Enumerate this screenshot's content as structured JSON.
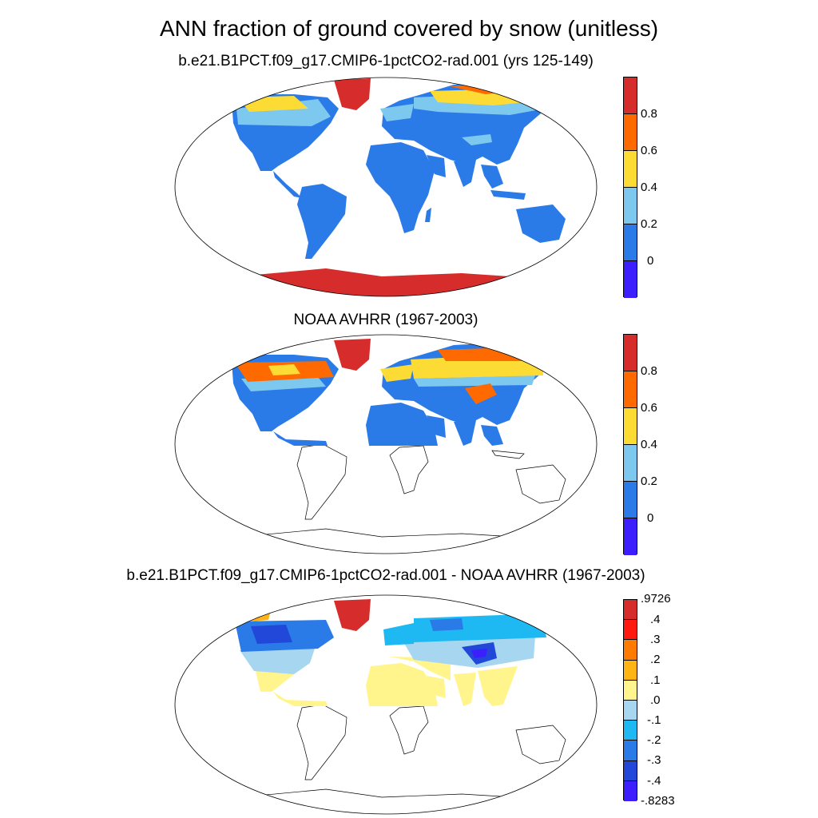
{
  "figure": {
    "title": "ANN fraction of ground covered by snow (unitless)"
  },
  "panels": [
    {
      "title": "b.e21.B1PCT.f09_g17.CMIP6-1pctCO2-rad.001 (yrs 125-149)",
      "colorbar": {
        "labels": [
          "0.8",
          "0.6",
          "0.4",
          "0.2",
          "0"
        ],
        "colors": [
          "#d62c2c",
          "#ff6a00",
          "#fcdb35",
          "#7dc8ef",
          "#2a7ae8",
          "#3c1eff"
        ]
      }
    },
    {
      "title": "NOAA AVHRR (1967-2003)",
      "colorbar": {
        "labels": [
          "0.8",
          "0.6",
          "0.4",
          "0.2",
          "0"
        ],
        "colors": [
          "#d62c2c",
          "#ff6a00",
          "#fcdb35",
          "#7dc8ef",
          "#2a7ae8",
          "#3c1eff"
        ]
      }
    },
    {
      "title": "b.e21.B1PCT.f09_g17.CMIP6-1pctCO2-rad.001 - NOAA AVHRR (1967-2003)",
      "colorbar": {
        "labels": [
          ".9726",
          ".4",
          ".3",
          ".2",
          ".1",
          ".0",
          "-.1",
          "-.2",
          "-.3",
          "-.4",
          "-.8283"
        ],
        "colors": [
          "#d62c2c",
          "#ff1a0f",
          "#ff7b00",
          "#ffb414",
          "#fff58c",
          "#a6d6f0",
          "#1eb9f2",
          "#2a7ae8",
          "#2148d9",
          "#3c1eff"
        ]
      }
    }
  ]
}
